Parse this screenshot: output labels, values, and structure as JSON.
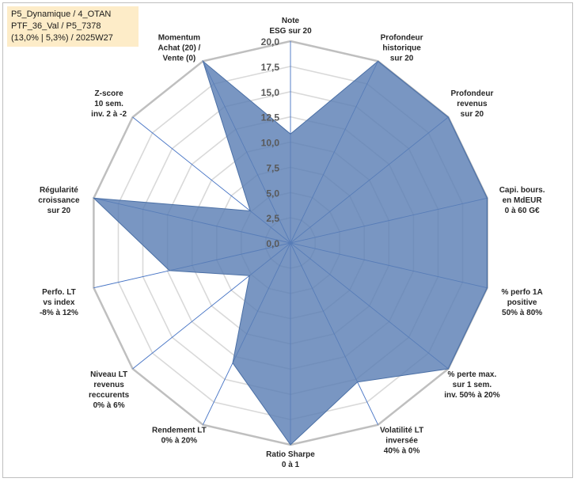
{
  "info_box": {
    "line1": "P5_Dynamique / 4_OTAN",
    "line2": "PTF_36_Val / P5_7378",
    "line3": "(13,0% | 5,3%) / 2025W27"
  },
  "colors": {
    "fill": "#5b7fb4",
    "stroke": "#4a6fa5",
    "spoke": "#4472c4",
    "grid": "#d9d9d9"
  },
  "chart_data": {
    "type": "radar",
    "ylim": [
      0,
      20
    ],
    "ticks": [
      "0,0",
      "2,5",
      "5,0",
      "7,5",
      "10,0",
      "12,5",
      "15,0",
      "17,5",
      "20,0"
    ],
    "axes": [
      [
        "Note",
        "ESG sur 20"
      ],
      [
        "Profondeur",
        "historique",
        "sur 20"
      ],
      [
        "Profondeur",
        "revenus",
        "sur 20"
      ],
      [
        "Capi. bours.",
        "en MdEUR",
        "0 à 60 G€"
      ],
      [
        "% perfo 1A",
        "positive",
        "50% à 80%"
      ],
      [
        "% perte max.",
        "sur 1 sem.",
        "inv. 50% à 20%"
      ],
      [
        "Volatilité LT",
        "inversée",
        "40% à 0%"
      ],
      [
        "Ratio Sharpe",
        "0 à 1"
      ],
      [
        "Rendement LT",
        "0% à 20%"
      ],
      [
        "Niveau LT",
        "revenus",
        "reccurents",
        "0% à 6%"
      ],
      [
        "Perfo. LT",
        "vs index",
        "-8% à 12%"
      ],
      [
        "Régularité",
        "croissance",
        "sur 20"
      ],
      [
        "Z-score",
        "10 sem.",
        "inv. 2 à -2"
      ],
      [
        "Momentum",
        "Achat (20) /",
        "Vente (0)"
      ]
    ],
    "values": [
      10.8,
      20,
      20,
      20,
      20,
      20,
      15.3,
      20,
      13.2,
      5.2,
      12.3,
      20,
      5.1,
      20
    ]
  }
}
